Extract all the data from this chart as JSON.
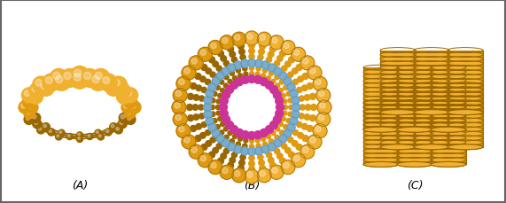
{
  "bg_color": "#ffffff",
  "border_color": "#666666",
  "label_A": "(A)",
  "label_B": "(B)",
  "label_C": "(C)",
  "gold_color": "#CC8800",
  "gold_mid": "#E09A10",
  "gold_light": "#F0B030",
  "gold_dark": "#996600",
  "blue_color": "#7AACCC",
  "pink_color": "#CC3399",
  "fig_width": 5.71,
  "fig_height": 2.3,
  "dpi": 100
}
